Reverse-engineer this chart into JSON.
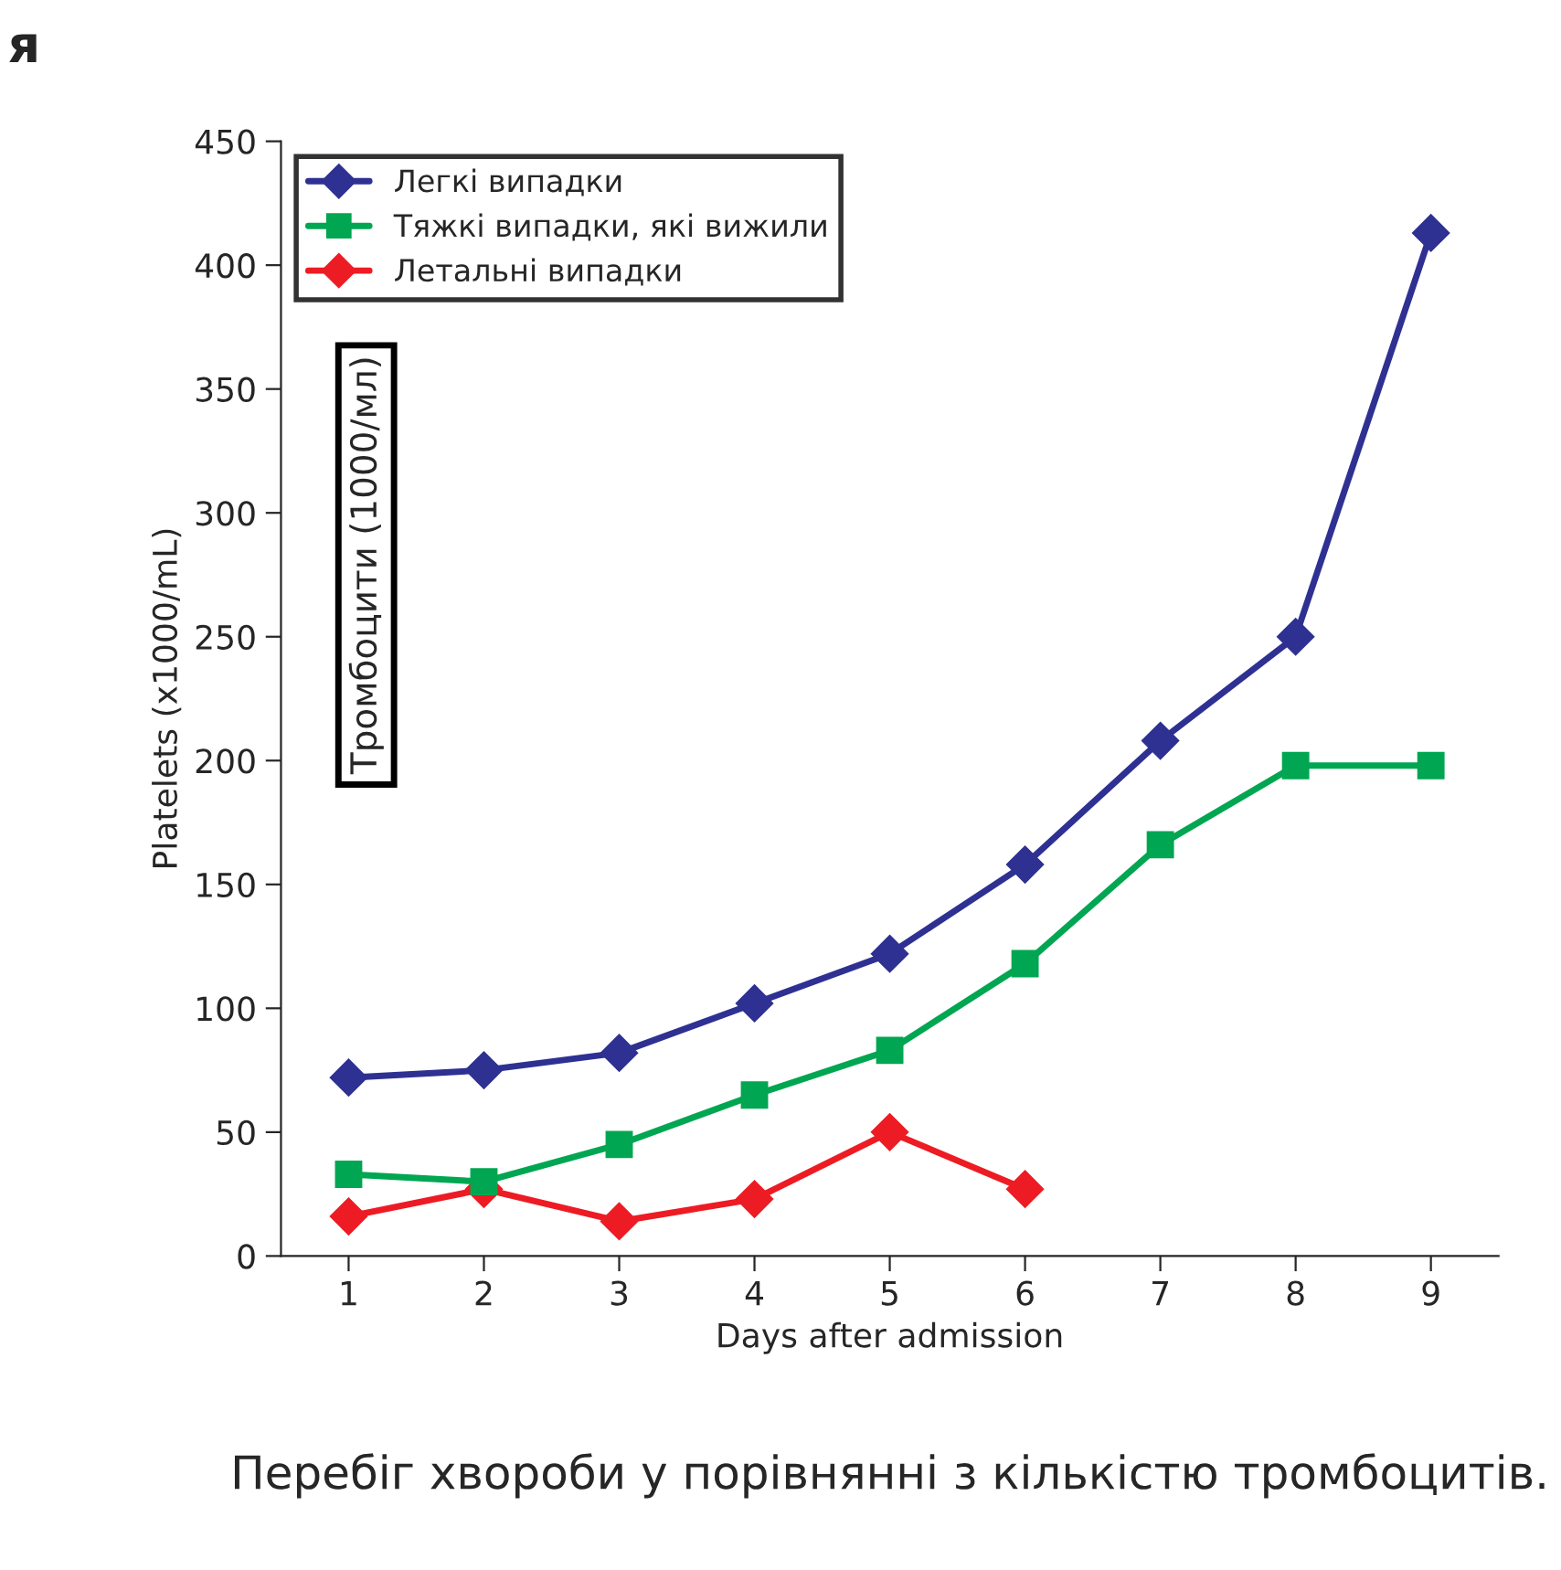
{
  "chart_data": {
    "type": "line",
    "xlabel": "Days after admission",
    "ylabel": "Platelets (x1000/mL)",
    "categories": [
      "1",
      "2",
      "3",
      "4",
      "5",
      "6",
      "7",
      "8",
      "9"
    ],
    "series": [
      {
        "name": "Легкі випадки",
        "color": "#2e3192",
        "marker": "diamond",
        "values": [
          72,
          75,
          82,
          102,
          122,
          158,
          208,
          250,
          413
        ]
      },
      {
        "name": "Тяжкі випадки, які вижили",
        "color": "#00a651",
        "marker": "square",
        "values": [
          33,
          30,
          45,
          65,
          83,
          118,
          166,
          198,
          198
        ]
      },
      {
        "name": "Летальні випадки",
        "color": "#ed1c24",
        "marker": "diamond",
        "values": [
          16,
          27,
          14,
          23,
          50,
          27,
          null,
          null,
          null
        ]
      }
    ],
    "ylim": [
      0,
      450
    ],
    "yticks": [
      0,
      50,
      100,
      150,
      200,
      250,
      300,
      350,
      400,
      450
    ],
    "legend": "top left",
    "grid": false,
    "line_style": "solid",
    "annotations": [
      "Тромбоцити (1000/мл)",
      "Перебіг хвороби у порівнянні з кількістю тромбоцитів.",
      "я"
    ]
  }
}
